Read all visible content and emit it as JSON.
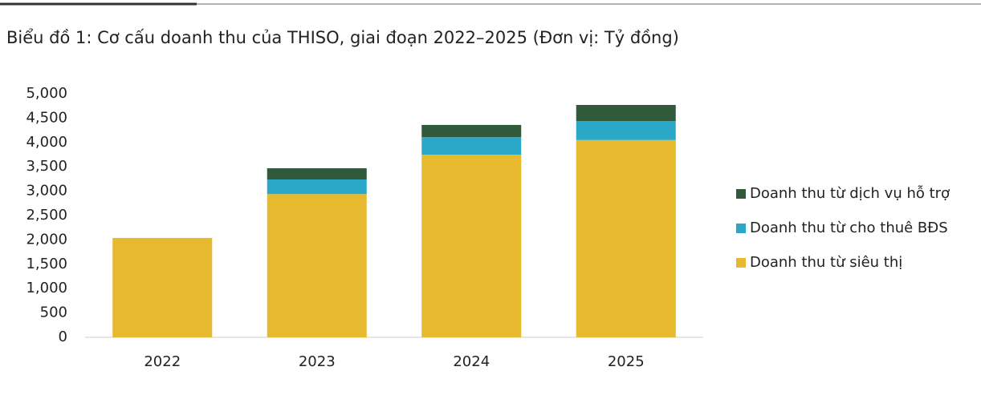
{
  "chart_data": {
    "type": "stacked_bar",
    "title": "Biểu đồ 1: Cơ cấu doanh thu của THISO, giai đoạn 2022–2025 (Đơn vị: Tỷ đồng)",
    "categories": [
      "2022",
      "2023",
      "2024",
      "2025"
    ],
    "series": [
      {
        "name": "Doanh thu từ siêu thị",
        "color": "#e6b92e",
        "values": [
          2040,
          2940,
          3750,
          4050
        ]
      },
      {
        "name": "Doanh thu từ cho thuê BĐS",
        "color": "#2ba7c8",
        "values": [
          0,
          300,
          360,
          390
        ]
      },
      {
        "name": "Doanh thu từ dịch vụ hỗ trợ",
        "color": "#305a3b",
        "values": [
          0,
          230,
          250,
          330
        ]
      }
    ],
    "ylim": [
      0,
      5000
    ],
    "yticks": [
      0,
      {
        "value": 500,
        "label": "500"
      },
      {
        "value": 1000,
        "label": "1,000"
      },
      {
        "value": 1500,
        "label": "1,500"
      },
      {
        "value": 2000,
        "label": "2,000"
      },
      {
        "value": 2500,
        "label": "2,500"
      },
      {
        "value": 3000,
        "label": "3,000"
      },
      {
        "value": 3500,
        "label": "3,500"
      },
      {
        "value": 4000,
        "label": "4,000"
      },
      {
        "value": 4500,
        "label": "4,500"
      },
      {
        "value": 5000,
        "label": "5,000"
      }
    ],
    "legend": "right",
    "grid": false
  }
}
